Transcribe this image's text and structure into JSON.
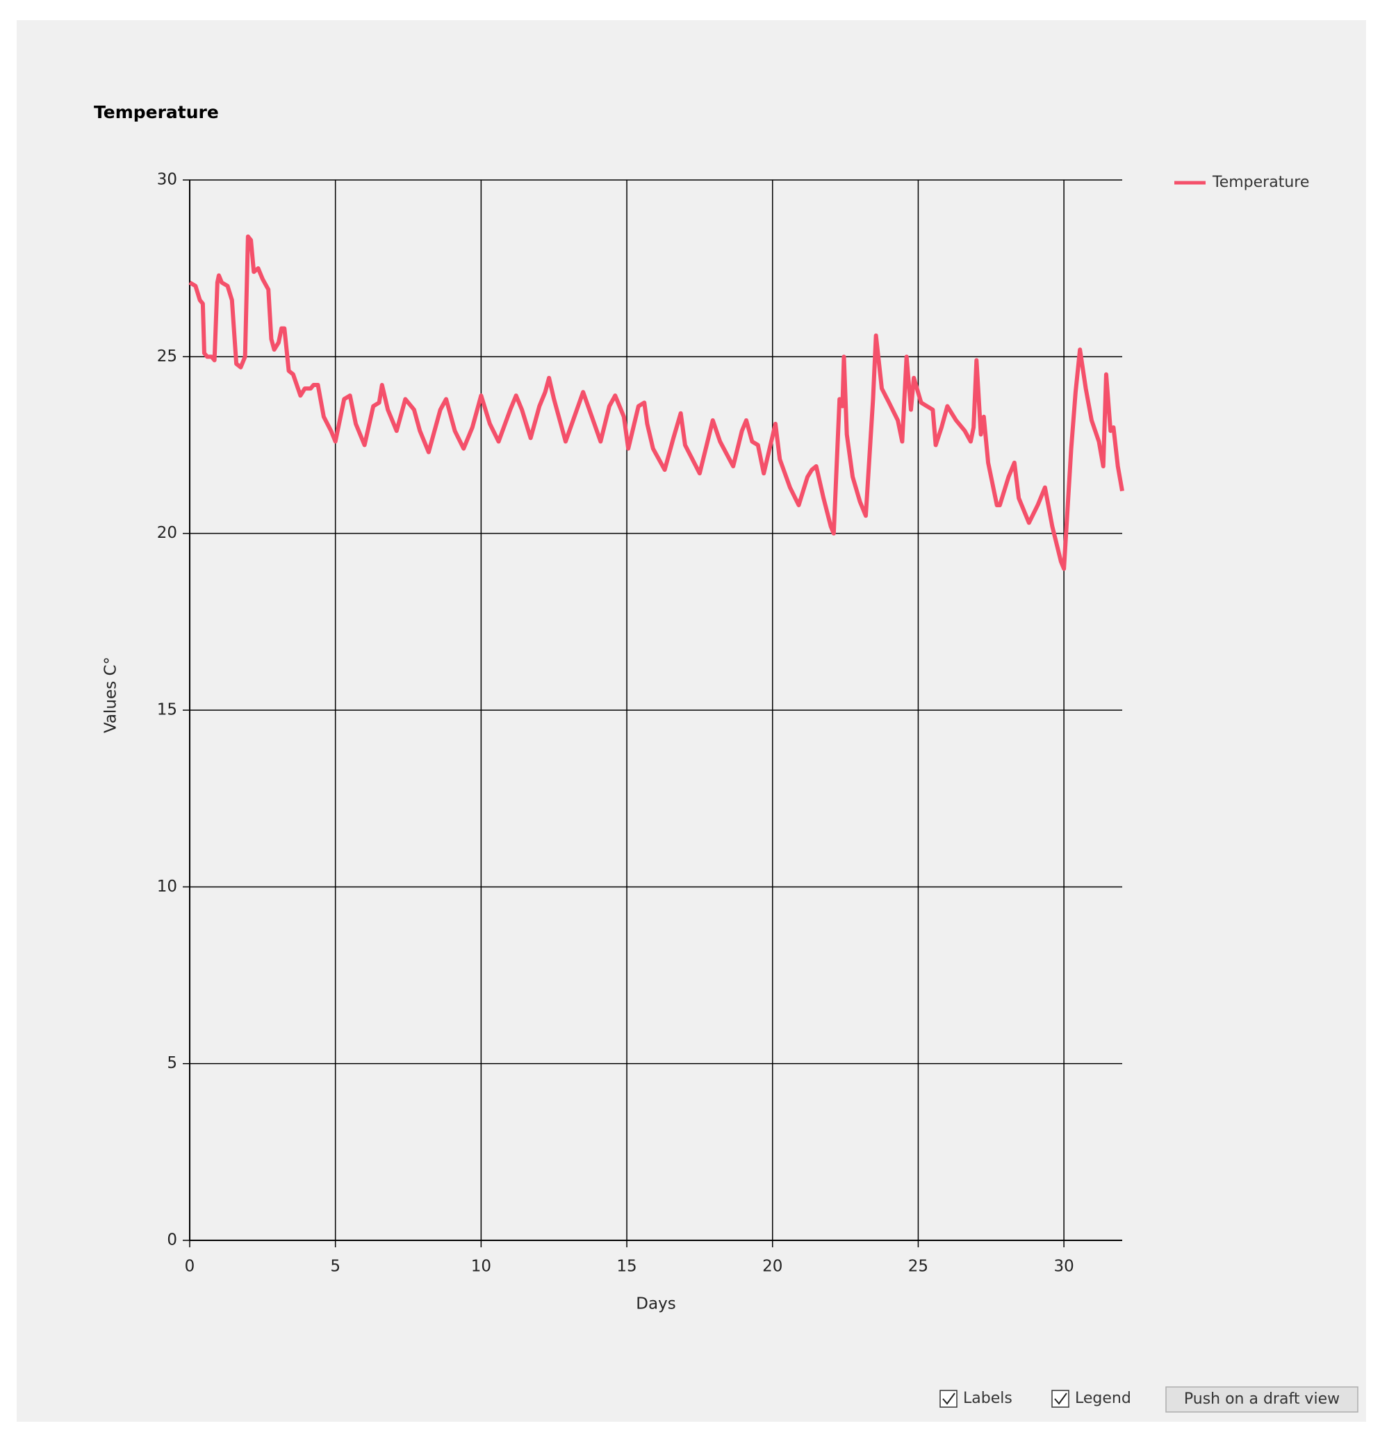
{
  "chart_data": {
    "type": "line",
    "title": "Temperature",
    "x_label": "Days",
    "y_label": "Values  C°",
    "x": [
      0,
      0.2,
      0.35,
      0.45,
      0.5,
      0.6,
      0.75,
      0.85,
      0.95,
      1.0,
      1.1,
      1.3,
      1.45,
      1.6,
      1.75,
      1.9,
      2.0,
      2.1,
      2.2,
      2.35,
      2.5,
      2.7,
      2.8,
      2.9,
      3.05,
      3.15,
      3.25,
      3.4,
      3.55,
      3.8,
      3.95,
      4.15,
      4.25,
      4.4,
      4.6,
      4.85,
      5.0,
      5.3,
      5.5,
      5.7,
      6.0,
      6.3,
      6.5,
      6.6,
      6.8,
      7.1,
      7.4,
      7.7,
      7.9,
      8.2,
      8.6,
      8.8,
      9.1,
      9.4,
      9.7,
      10.0,
      10.3,
      10.6,
      11.0,
      11.2,
      11.4,
      11.7,
      12.0,
      12.2,
      12.33,
      12.5,
      12.9,
      13.2,
      13.5,
      13.8,
      14.1,
      14.4,
      14.6,
      14.9,
      15.05,
      15.4,
      15.6,
      15.7,
      15.9,
      16.3,
      16.6,
      16.85,
      17.0,
      17.5,
      17.95,
      18.2,
      18.65,
      18.95,
      19.1,
      19.3,
      19.5,
      19.7,
      20.1,
      20.25,
      20.6,
      20.9,
      21.2,
      21.35,
      21.5,
      21.75,
      22.0,
      22.1,
      22.3,
      22.4,
      22.45,
      22.55,
      22.75,
      23.0,
      23.2,
      23.45,
      23.55,
      23.75,
      24.0,
      24.3,
      24.45,
      24.6,
      24.75,
      24.85,
      25.1,
      25.3,
      25.5,
      25.6,
      25.8,
      26.0,
      26.3,
      26.6,
      26.8,
      26.9,
      27.0,
      27.15,
      27.25,
      27.4,
      27.7,
      27.8,
      28.1,
      28.3,
      28.45,
      28.8,
      29.1,
      29.35,
      29.6,
      29.9,
      30.0,
      30.25,
      30.4,
      30.55,
      30.75,
      30.95,
      31.2,
      31.35,
      31.45,
      31.6,
      31.7,
      31.85,
      32.0
    ],
    "series": [
      {
        "name": "Temperature",
        "color": "#f4506a",
        "values": [
          27.1,
          27.0,
          26.6,
          26.5,
          25.1,
          25.0,
          25.0,
          24.9,
          27.1,
          27.3,
          27.1,
          27.0,
          26.6,
          24.8,
          24.7,
          25.0,
          28.4,
          28.3,
          27.4,
          27.5,
          27.2,
          26.9,
          25.5,
          25.2,
          25.4,
          25.8,
          25.8,
          24.6,
          24.5,
          23.9,
          24.1,
          24.1,
          24.2,
          24.2,
          23.3,
          22.9,
          22.6,
          23.8,
          23.9,
          23.1,
          22.5,
          23.6,
          23.7,
          24.2,
          23.5,
          22.9,
          23.8,
          23.5,
          22.9,
          22.3,
          23.5,
          23.8,
          22.9,
          22.4,
          23.0,
          23.9,
          23.1,
          22.6,
          23.5,
          23.9,
          23.5,
          22.7,
          23.6,
          24.0,
          24.4,
          23.8,
          22.6,
          23.3,
          24.0,
          23.3,
          22.6,
          23.6,
          23.9,
          23.3,
          22.4,
          23.6,
          23.7,
          23.1,
          22.4,
          21.8,
          22.7,
          23.4,
          22.5,
          21.7,
          23.2,
          22.6,
          21.9,
          22.9,
          23.2,
          22.6,
          22.5,
          21.7,
          23.1,
          22.1,
          21.3,
          20.8,
          21.6,
          21.8,
          21.9,
          21.0,
          20.2,
          20.0,
          23.8,
          23.6,
          25.0,
          22.8,
          21.6,
          20.9,
          20.5,
          23.8,
          25.6,
          24.1,
          23.7,
          23.2,
          22.6,
          25.0,
          23.5,
          24.4,
          23.7,
          23.6,
          23.5,
          22.5,
          23.0,
          23.6,
          23.2,
          22.9,
          22.6,
          23.0,
          24.9,
          22.8,
          23.3,
          22.0,
          20.8,
          20.8,
          21.6,
          22.0,
          21.0,
          20.3,
          20.8,
          21.3,
          20.2,
          19.2,
          19.0,
          22.4,
          24.0,
          25.2,
          24.1,
          23.2,
          22.6,
          21.9,
          24.5,
          22.9,
          23.0,
          21.9,
          21.2
        ]
      }
    ],
    "xlim": [
      0,
      32
    ],
    "xticks": [
      0,
      5,
      10,
      15,
      20,
      25,
      30
    ],
    "ylim": [
      0,
      30
    ],
    "yticks": [
      0,
      5,
      10,
      15,
      20,
      25,
      30
    ],
    "grid": true,
    "legend": "right"
  },
  "controls": {
    "checkboxes": [
      {
        "label": "Labels",
        "checked": true
      },
      {
        "label": "Legend",
        "checked": true
      }
    ],
    "button": "Push on a draft view"
  }
}
